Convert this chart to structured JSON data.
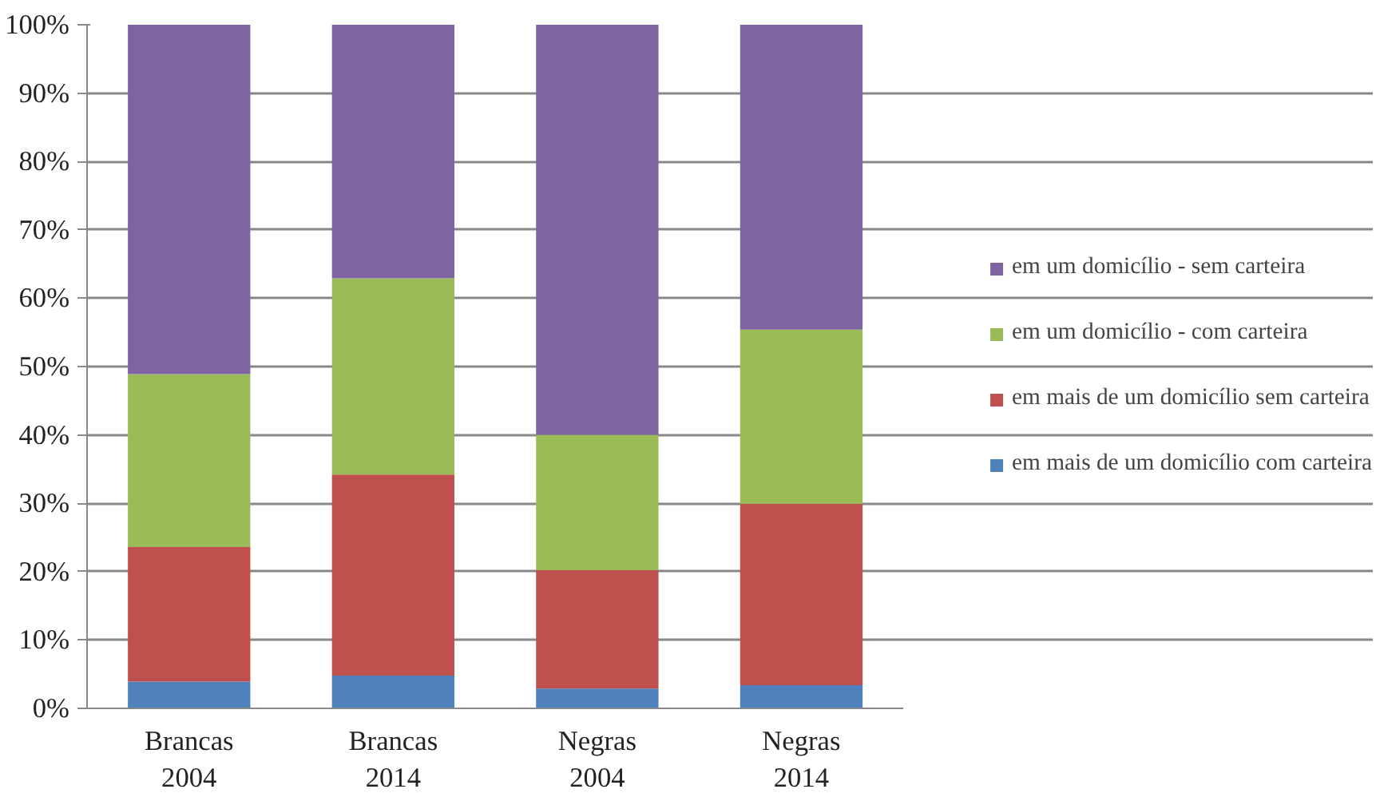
{
  "chart_data": {
    "type": "bar",
    "stacked": true,
    "categories": [
      "Brancas\n2004",
      "Brancas\n2014",
      "Negras\n2004",
      "Negras\n2014"
    ],
    "series": [
      {
        "name": "em mais de um domicílio com carteira",
        "color": "#4f81bd",
        "values": [
          3.9,
          4.8,
          2.9,
          3.4
        ]
      },
      {
        "name": "em mais de um domicílio sem carteira",
        "color": "#c0504d",
        "values": [
          19.7,
          29.4,
          17.3,
          26.5
        ]
      },
      {
        "name": "em um domicílio - com carteira",
        "color": "#9bbb59",
        "values": [
          25.3,
          28.7,
          19.8,
          25.5
        ]
      },
      {
        "name": "em um domicílio - sem carteira",
        "color": "#8064a2",
        "values": [
          51.1,
          37.1,
          60.0,
          44.6
        ]
      }
    ],
    "ylim": [
      0,
      100
    ],
    "yticks": [
      {
        "value": 0,
        "label": "0%"
      },
      {
        "value": 10,
        "label": "10%"
      },
      {
        "value": 20,
        "label": "20%"
      },
      {
        "value": 30,
        "label": "30%"
      },
      {
        "value": 40,
        "label": "40%"
      },
      {
        "value": 50,
        "label": "50%"
      },
      {
        "value": 60,
        "label": "60%"
      },
      {
        "value": 70,
        "label": "70%"
      },
      {
        "value": 80,
        "label": "80%"
      },
      {
        "value": 90,
        "label": "90%"
      },
      {
        "value": 100,
        "label": "100%"
      }
    ],
    "grid": "y",
    "legend": "right"
  }
}
